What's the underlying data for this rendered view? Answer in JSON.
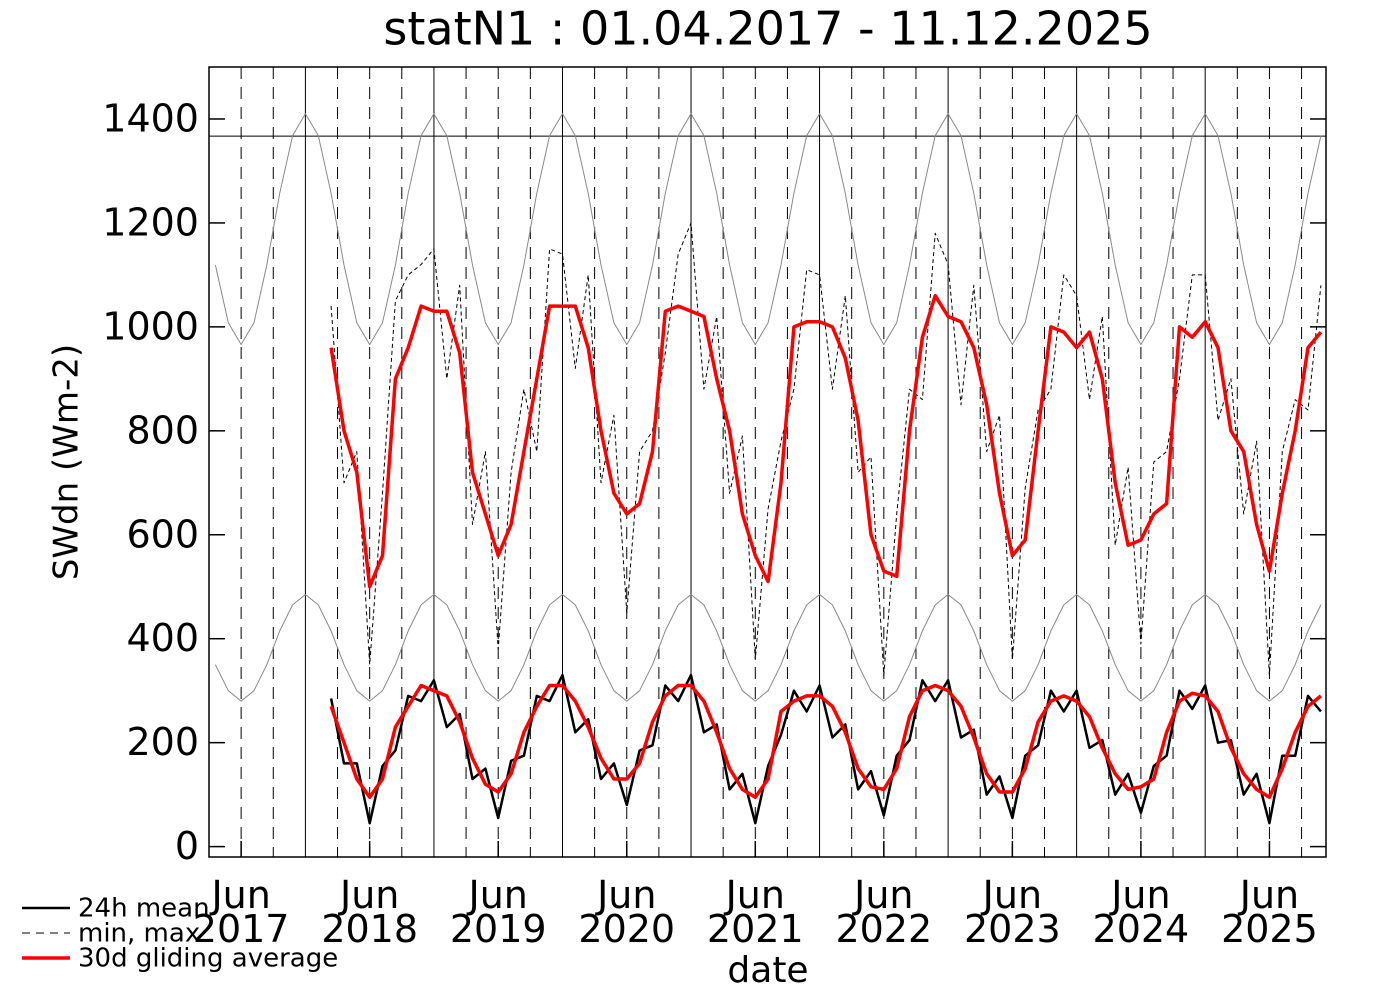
{
  "chart_data": {
    "type": "line",
    "title": "statN1 : 01.04.2017 - 11.12.2025",
    "x_label": "date",
    "y_label": "SWdn (Wm-2)",
    "xlim": [
      2017.25,
      2025.94
    ],
    "ylim": [
      -20,
      1500
    ],
    "yticks": [
      0,
      200,
      400,
      600,
      800,
      1000,
      1200,
      1400
    ],
    "xticks": [
      {
        "value": 2017.5,
        "label": [
          "Jun",
          "2017"
        ]
      },
      {
        "value": 2018.5,
        "label": [
          "Jun",
          "2018"
        ]
      },
      {
        "value": 2019.5,
        "label": [
          "Jun",
          "2019"
        ]
      },
      {
        "value": 2020.5,
        "label": [
          "Jun",
          "2020"
        ]
      },
      {
        "value": 2021.5,
        "label": [
          "Jun",
          "2021"
        ]
      },
      {
        "value": 2022.5,
        "label": [
          "Jun",
          "2022"
        ]
      },
      {
        "value": 2023.5,
        "label": [
          "Jun",
          "2023"
        ]
      },
      {
        "value": 2024.5,
        "label": [
          "Jun",
          "2024"
        ]
      },
      {
        "value": 2025.5,
        "label": [
          "Jun",
          "2025"
        ]
      }
    ],
    "year_lines": [
      2018,
      2019,
      2020,
      2021,
      2022,
      2023,
      2024,
      2025
    ],
    "quarter_lines": [
      2017.5,
      2017.75,
      2018.25,
      2018.5,
      2018.75,
      2019.25,
      2019.5,
      2019.75,
      2020.25,
      2020.5,
      2020.75,
      2021.25,
      2021.5,
      2021.75,
      2022.25,
      2022.5,
      2022.75,
      2023.25,
      2023.5,
      2023.75,
      2024.25,
      2024.5,
      2024.75,
      2025.25,
      2025.5,
      2025.75
    ],
    "reference_line": 1367,
    "legend": "lower left",
    "x": [
      2017.3,
      2017.4,
      2017.5,
      2017.6,
      2017.7,
      2017.8,
      2017.9,
      2018.0,
      2018.1,
      2018.2,
      2018.3,
      2018.4,
      2018.5,
      2018.6,
      2018.7,
      2018.8,
      2018.9,
      2019.0,
      2019.1,
      2019.2,
      2019.3,
      2019.4,
      2019.5,
      2019.6,
      2019.7,
      2019.8,
      2019.9,
      2020.0,
      2020.1,
      2020.2,
      2020.3,
      2020.4,
      2020.5,
      2020.6,
      2020.7,
      2020.8,
      2020.9,
      2021.0,
      2021.1,
      2021.2,
      2021.3,
      2021.4,
      2021.5,
      2021.6,
      2021.7,
      2021.8,
      2021.9,
      2022.0,
      2022.1,
      2022.2,
      2022.3,
      2022.4,
      2022.5,
      2022.6,
      2022.7,
      2022.8,
      2022.9,
      2023.0,
      2023.1,
      2023.2,
      2023.3,
      2023.4,
      2023.5,
      2023.6,
      2023.7,
      2023.8,
      2023.9,
      2024.0,
      2024.1,
      2024.2,
      2024.3,
      2024.4,
      2024.5,
      2024.6,
      2024.7,
      2024.8,
      2024.9,
      2025.0,
      2025.1,
      2025.2,
      2025.3,
      2025.4,
      2025.5,
      2025.6,
      2025.7,
      2025.8,
      2025.9
    ],
    "series": [
      {
        "name": "24h mean",
        "color": "#000000",
        "linestyle": "solid",
        "linewidth": 2.5,
        "values": [
          null,
          null,
          null,
          null,
          null,
          null,
          null,
          null,
          null,
          285,
          160,
          160,
          45,
          155,
          185,
          290,
          280,
          320,
          230,
          255,
          130,
          150,
          55,
          165,
          175,
          290,
          280,
          330,
          220,
          245,
          130,
          160,
          80,
          185,
          195,
          310,
          280,
          330,
          220,
          235,
          110,
          140,
          45,
          155,
          215,
          300,
          260,
          310,
          210,
          235,
          110,
          145,
          60,
          175,
          205,
          320,
          280,
          320,
          210,
          225,
          100,
          135,
          55,
          175,
          195,
          300,
          260,
          300,
          190,
          205,
          100,
          140,
          65,
          155,
          175,
          300,
          265,
          310,
          200,
          205,
          100,
          140,
          45,
          175,
          175,
          290,
          260
        ]
      },
      {
        "name": "min, max",
        "color": "#000000",
        "linestyle": "dashed",
        "linewidth": 1,
        "values": [
          null,
          null,
          null,
          null,
          null,
          null,
          null,
          null,
          null,
          1040,
          700,
          760,
          350,
          680,
          1050,
          1100,
          1120,
          1150,
          900,
          1080,
          620,
          760,
          380,
          720,
          880,
          760,
          1150,
          1140,
          920,
          1100,
          700,
          830,
          450,
          760,
          800,
          950,
          1140,
          1200,
          880,
          1020,
          680,
          790,
          360,
          650,
          780,
          880,
          1110,
          1100,
          880,
          1060,
          720,
          750,
          330,
          640,
          880,
          860,
          1180,
          1120,
          850,
          1080,
          760,
          830,
          360,
          690,
          840,
          880,
          1100,
          1060,
          860,
          1020,
          580,
          730,
          390,
          740,
          760,
          900,
          1100,
          1100,
          820,
          900,
          640,
          780,
          330,
          760,
          860,
          840,
          1080
        ]
      },
      {
        "name": "30d gliding average",
        "color": "#ff0000",
        "linestyle": "solid",
        "linewidth": 3.5,
        "values": [
          null,
          null,
          null,
          null,
          null,
          null,
          null,
          null,
          null,
          270,
          200,
          130,
          95,
          130,
          230,
          270,
          310,
          300,
          290,
          240,
          170,
          120,
          105,
          140,
          220,
          270,
          310,
          310,
          280,
          230,
          170,
          130,
          130,
          160,
          240,
          290,
          310,
          310,
          280,
          220,
          150,
          110,
          95,
          130,
          260,
          280,
          290,
          290,
          270,
          220,
          150,
          115,
          110,
          150,
          250,
          300,
          310,
          300,
          270,
          210,
          140,
          105,
          105,
          150,
          240,
          280,
          290,
          280,
          250,
          190,
          140,
          110,
          115,
          130,
          220,
          280,
          295,
          290,
          260,
          190,
          140,
          110,
          95,
          150,
          220,
          270,
          290
        ]
      },
      {
        "color": "#ff0000",
        "linestyle": "solid",
        "linewidth": 3.5,
        "values": [
          null,
          null,
          null,
          null,
          null,
          null,
          null,
          null,
          null,
          960,
          800,
          720,
          500,
          560,
          900,
          960,
          1040,
          1030,
          1030,
          950,
          720,
          640,
          560,
          620,
          760,
          900,
          1040,
          1040,
          1040,
          960,
          800,
          680,
          640,
          660,
          760,
          1030,
          1040,
          1030,
          1020,
          900,
          800,
          640,
          560,
          510,
          700,
          1000,
          1010,
          1010,
          1000,
          940,
          820,
          600,
          530,
          520,
          800,
          980,
          1060,
          1020,
          1010,
          960,
          850,
          680,
          560,
          590,
          800,
          1000,
          990,
          960,
          990,
          900,
          700,
          580,
          590,
          640,
          660,
          1000,
          980,
          1010,
          960,
          800,
          760,
          620,
          530,
          680,
          800,
          960,
          990
        ]
      },
      {
        "color": "#888888",
        "linestyle": "solid",
        "linewidth": 1,
        "values": [
          1119,
          1008,
          966,
          1008,
          1119,
          1257,
          1368,
          1410,
          1368,
          1257,
          1119,
          1008,
          966,
          1008,
          1119,
          1257,
          1368,
          1410,
          1368,
          1257,
          1119,
          1008,
          966,
          1008,
          1119,
          1257,
          1368,
          1410,
          1368,
          1257,
          1119,
          1008,
          966,
          1008,
          1119,
          1257,
          1368,
          1410,
          1368,
          1257,
          1119,
          1008,
          966,
          1008,
          1119,
          1257,
          1368,
          1410,
          1368,
          1257,
          1119,
          1008,
          966,
          1008,
          1119,
          1257,
          1368,
          1410,
          1368,
          1257,
          1119,
          1008,
          966,
          1008,
          1119,
          1257,
          1368,
          1410,
          1368,
          1257,
          1119,
          1008,
          966,
          1008,
          1119,
          1257,
          1368,
          1410,
          1368,
          1257,
          1119,
          1008,
          966,
          1008,
          1119,
          1257,
          1368
        ]
      },
      {
        "color": "#888888",
        "linestyle": "solid",
        "linewidth": 1,
        "values": [
          350,
          300,
          280,
          300,
          350,
          415,
          465,
          485,
          465,
          415,
          350,
          300,
          280,
          300,
          350,
          415,
          465,
          485,
          465,
          415,
          350,
          300,
          280,
          300,
          350,
          415,
          465,
          485,
          465,
          415,
          350,
          300,
          280,
          300,
          350,
          415,
          465,
          485,
          465,
          415,
          350,
          300,
          280,
          300,
          350,
          415,
          465,
          485,
          465,
          415,
          350,
          300,
          280,
          300,
          350,
          415,
          465,
          485,
          465,
          415,
          350,
          300,
          280,
          300,
          350,
          415,
          465,
          485,
          465,
          415,
          350,
          300,
          280,
          300,
          350,
          415,
          465,
          485,
          465,
          415,
          350,
          300,
          280,
          300,
          350,
          415,
          465
        ]
      }
    ]
  }
}
